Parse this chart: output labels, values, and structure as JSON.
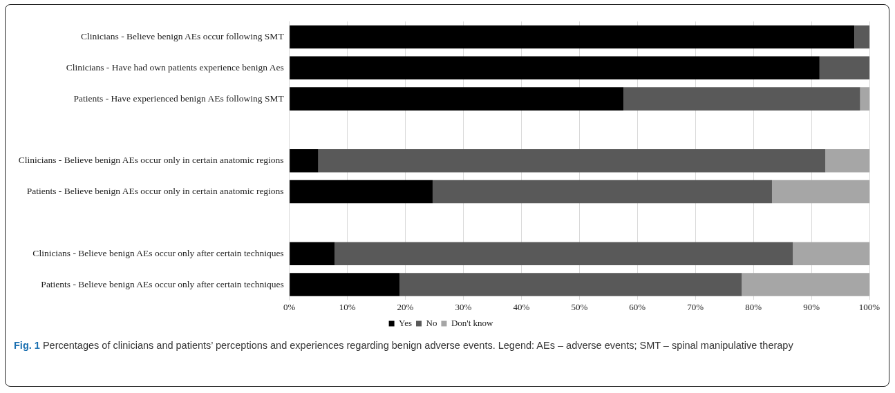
{
  "chart_data": {
    "type": "bar",
    "orientation": "horizontal",
    "stacked": true,
    "categories": [
      "Clinicians - Believe benign AEs occur following SMT",
      "Clinicians - Have had own patients experience benign Aes",
      "Patients - Have experienced benign AEs following SMT",
      null,
      "Clinicians - Believe benign AEs occur only in certain anatomic regions",
      "Patients - Believe benign AEs occur only in certain anatomic regions",
      null,
      "Clinicians - Believe benign AEs occur only after certain techniques",
      "Patients - Believe benign AEs occur only after certain techniques"
    ],
    "series": [
      {
        "name": "Yes",
        "color": "#000000",
        "values": [
          97.4,
          91.4,
          57.6,
          null,
          5.0,
          24.7,
          null,
          7.8,
          19.0
        ]
      },
      {
        "name": "No",
        "color": "#595959",
        "values": [
          2.6,
          8.6,
          40.8,
          null,
          87.4,
          58.5,
          null,
          79.0,
          59.0
        ]
      },
      {
        "name": "Don't know",
        "color": "#a6a6a6",
        "values": [
          null,
          null,
          1.6,
          null,
          7.6,
          16.8,
          null,
          13.2,
          22.0
        ]
      }
    ],
    "xlim": [
      0,
      100
    ],
    "xticks": [
      {
        "value": 0,
        "label": "0%"
      },
      {
        "value": 10,
        "label": "10%"
      },
      {
        "value": 20,
        "label": "20%"
      },
      {
        "value": 30,
        "label": "30%"
      },
      {
        "value": 40,
        "label": "40%"
      },
      {
        "value": 50,
        "label": "50%"
      },
      {
        "value": 60,
        "label": "60%"
      },
      {
        "value": 70,
        "label": "70%"
      },
      {
        "value": 80,
        "label": "80%"
      },
      {
        "value": 90,
        "label": "90%"
      },
      {
        "value": 100,
        "label": "100%"
      }
    ],
    "grid": "x",
    "legend": "bottom",
    "annotations": [
      "Fig. 1 Percentages of clinicians and patients’ perceptions and experiences regarding benign adverse events. Legend: AEs – adverse events; SMT – spinal manipulative therapy"
    ]
  }
}
